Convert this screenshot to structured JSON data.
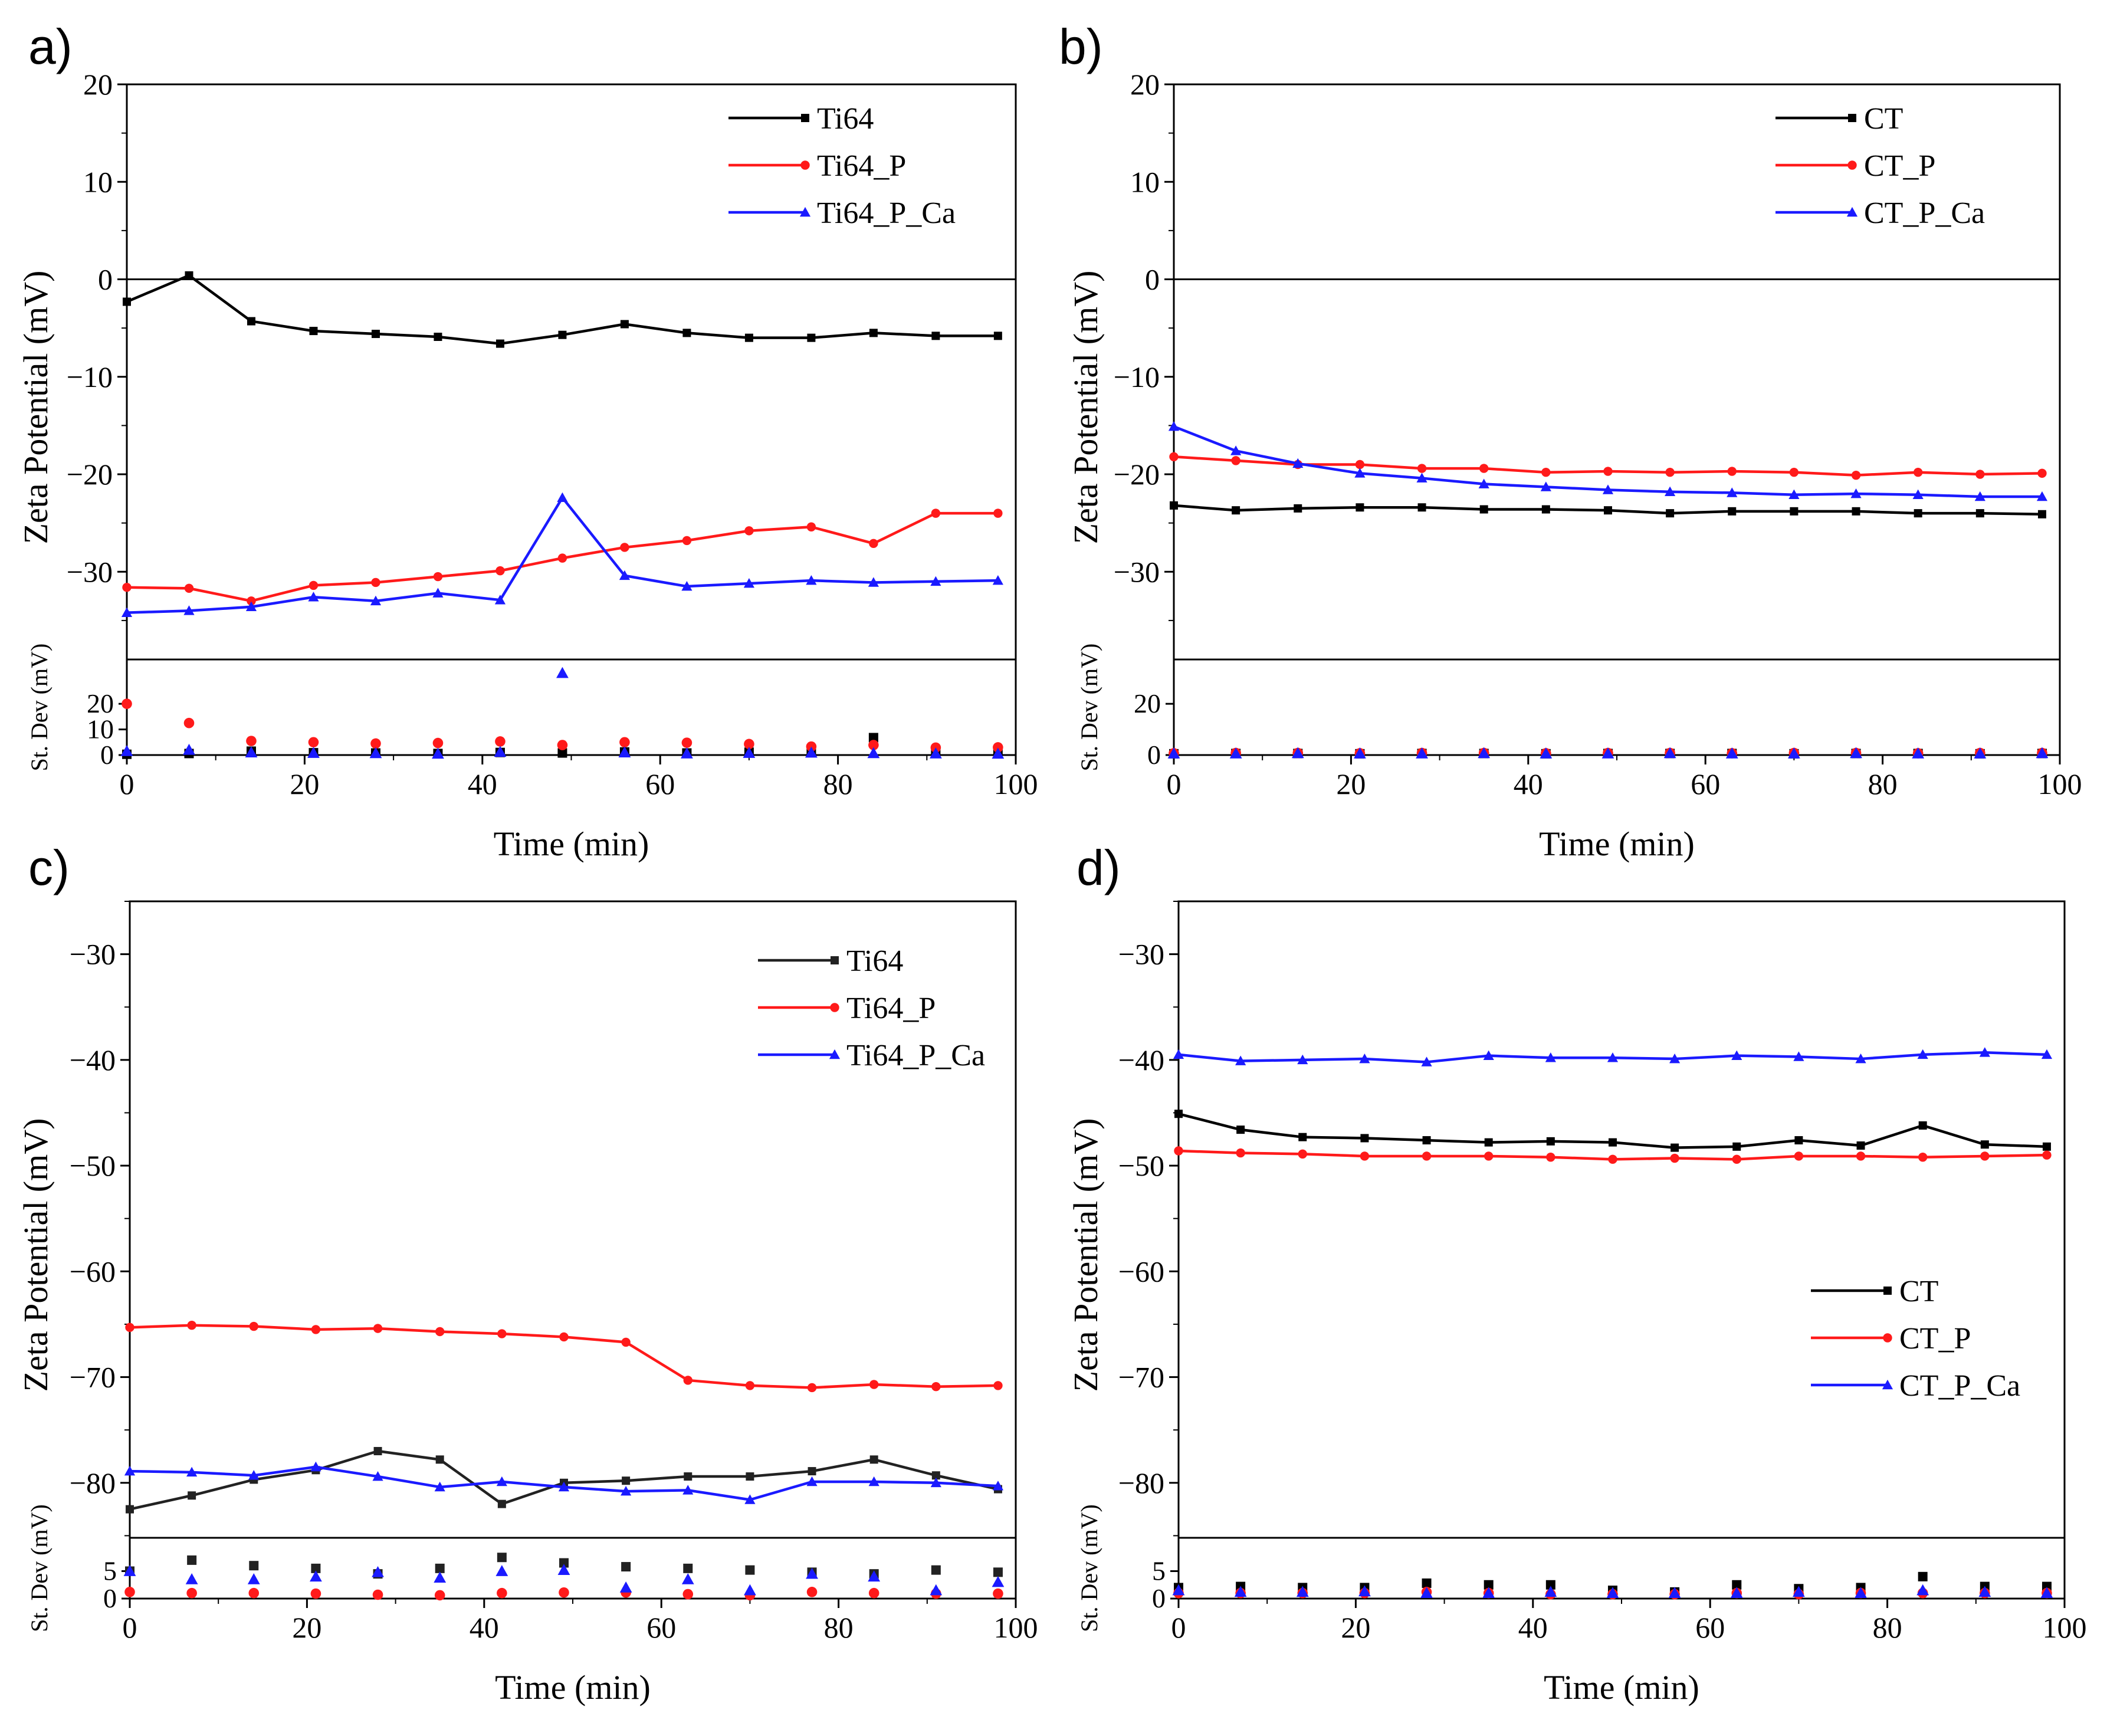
{
  "figure": {
    "colors": {
      "black": "#000000",
      "red": "#ff1a1a",
      "blue": "#1a1aff",
      "dark": "#222222"
    }
  },
  "chart_data": [
    {
      "panel": "a)",
      "type": "line",
      "xlabel": "Time (min)",
      "ylabel": "Zeta Potential (mV)",
      "sd_label": "St. Dev (mV)",
      "xlim": [
        0,
        100
      ],
      "ylim": [
        -39,
        20
      ],
      "yticks": [
        20,
        10,
        0,
        -10,
        -20,
        -30
      ],
      "sd_ylim": [
        0,
        35
      ],
      "sd_yticks": [
        20,
        10,
        0
      ],
      "xticks": [
        0,
        20,
        40,
        60,
        80,
        100
      ],
      "zero_line": true,
      "legend_pos": "top-right",
      "x": [
        0,
        7,
        14,
        21,
        28,
        35,
        42,
        49,
        56,
        63,
        70,
        77,
        84,
        91,
        98
      ],
      "series": [
        {
          "name": "Ti64",
          "color": "#000000",
          "marker": "square",
          "values": [
            -2.3,
            0.4,
            -4.3,
            -5.3,
            -5.6,
            -5.9,
            -6.6,
            -5.7,
            -4.6,
            -5.5,
            -6.0,
            -6.0,
            -5.5,
            -5.8,
            -5.8
          ],
          "sd": [
            0.3,
            0.6,
            1.5,
            0.9,
            0.8,
            0.6,
            1.0,
            0.8,
            1.2,
            0.8,
            1.1,
            1.0,
            6.8,
            0.9,
            0.8
          ]
        },
        {
          "name": "Ti64_P",
          "color": "#ff1a1a",
          "marker": "circle",
          "values": [
            -31.6,
            -31.7,
            -33.0,
            -31.4,
            -31.1,
            -30.5,
            -29.9,
            -28.6,
            -27.5,
            -26.8,
            -25.8,
            -25.4,
            -27.1,
            -24.0,
            -24.0
          ],
          "sd": [
            20.0,
            12.5,
            5.5,
            5.0,
            4.5,
            4.7,
            5.3,
            3.9,
            5.0,
            4.8,
            4.3,
            3.3,
            3.9,
            2.9,
            3.0
          ]
        },
        {
          "name": "Ti64_P_Ca",
          "color": "#1a1aff",
          "marker": "triangle",
          "values": [
            -34.2,
            -34.0,
            -33.6,
            -32.6,
            -33.0,
            -32.2,
            -32.9,
            -22.4,
            -30.4,
            -31.5,
            -31.2,
            -30.9,
            -31.1,
            -31.0,
            -30.9
          ],
          "sd": [
            1.5,
            2.0,
            1.0,
            0.8,
            0.7,
            0.5,
            1.2,
            32.0,
            1.0,
            0.6,
            0.8,
            0.9,
            0.7,
            0.6,
            0.5
          ]
        }
      ]
    },
    {
      "panel": "b)",
      "type": "line",
      "xlabel": "Time (min)",
      "ylabel": "Zeta Potential (mV)",
      "sd_label": "St. Dev (mV)",
      "xlim": [
        0,
        100
      ],
      "ylim": [
        -39,
        20
      ],
      "yticks": [
        20,
        10,
        0,
        -10,
        -20,
        -30
      ],
      "sd_ylim": [
        0,
        35
      ],
      "sd_yticks": [
        20,
        0
      ],
      "xticks": [
        0,
        20,
        40,
        60,
        80,
        100
      ],
      "zero_line": true,
      "legend_pos": "top-right",
      "x": [
        0,
        7,
        14,
        21,
        28,
        35,
        42,
        49,
        56,
        63,
        70,
        77,
        84,
        91,
        98
      ],
      "series": [
        {
          "name": "CT",
          "color": "#000000",
          "marker": "square",
          "values": [
            -23.2,
            -23.7,
            -23.5,
            -23.4,
            -23.4,
            -23.6,
            -23.6,
            -23.7,
            -24.0,
            -23.8,
            -23.8,
            -23.8,
            -24.0,
            -24.0,
            -24.1
          ],
          "sd": [
            0.5,
            0.6,
            0.6,
            0.5,
            0.6,
            0.6,
            0.5,
            0.6,
            0.6,
            0.6,
            0.5,
            0.6,
            0.6,
            0.5,
            0.6
          ]
        },
        {
          "name": "CT_P",
          "color": "#ff1a1a",
          "marker": "circle",
          "values": [
            -18.2,
            -18.6,
            -19.0,
            -19.0,
            -19.4,
            -19.4,
            -19.8,
            -19.7,
            -19.8,
            -19.7,
            -19.8,
            -20.1,
            -19.8,
            -20.0,
            -19.9
          ],
          "sd": [
            0.7,
            0.8,
            0.8,
            0.7,
            0.8,
            0.8,
            0.7,
            0.8,
            0.8,
            0.7,
            0.8,
            0.8,
            0.7,
            0.8,
            0.8
          ]
        },
        {
          "name": "CT_P_Ca",
          "color": "#1a1aff",
          "marker": "triangle",
          "values": [
            -15.1,
            -17.6,
            -18.9,
            -19.9,
            -20.4,
            -21.0,
            -21.3,
            -21.6,
            -21.8,
            -21.9,
            -22.1,
            -22.0,
            -22.1,
            -22.3,
            -22.3
          ],
          "sd": [
            0.6,
            0.6,
            0.7,
            0.6,
            0.6,
            0.7,
            0.6,
            0.6,
            0.7,
            0.6,
            0.6,
            0.7,
            0.6,
            0.6,
            0.7
          ]
        }
      ]
    },
    {
      "panel": "c)",
      "type": "line",
      "xlabel": "Time (min)",
      "ylabel": "Zeta Potential (mV)",
      "sd_label": "St. Dev (mV)",
      "xlim": [
        0,
        100
      ],
      "ylim": [
        -85.2,
        -25
      ],
      "yticks": [
        -30,
        -40,
        -50,
        -60,
        -70,
        -80
      ],
      "sd_ylim": [
        0,
        10
      ],
      "sd_yticks": [
        5,
        0
      ],
      "xticks": [
        0,
        20,
        40,
        60,
        80,
        100
      ],
      "zero_line": false,
      "legend_pos": "top-right",
      "x": [
        0,
        7,
        14,
        21,
        28,
        35,
        42,
        49,
        56,
        63,
        70,
        77,
        84,
        91,
        98
      ],
      "series": [
        {
          "name": "Ti64",
          "color": "#222222",
          "marker": "square",
          "values": [
            -82.5,
            -81.2,
            -79.7,
            -78.8,
            -77.0,
            -77.8,
            -82.0,
            -80.0,
            -79.8,
            -79.4,
            -79.4,
            -78.9,
            -77.8,
            -79.3,
            -80.6
          ],
          "sd": [
            5.0,
            7.0,
            6.0,
            5.5,
            4.5,
            5.5,
            7.5,
            6.5,
            5.8,
            5.5,
            5.2,
            4.8,
            4.5,
            5.2,
            4.8
          ]
        },
        {
          "name": "Ti64_P",
          "color": "#ff1a1a",
          "marker": "circle",
          "values": [
            -65.3,
            -65.1,
            -65.2,
            -65.5,
            -65.4,
            -65.7,
            -65.9,
            -66.2,
            -66.7,
            -70.3,
            -70.8,
            -71.0,
            -70.7,
            -70.9,
            -70.8
          ],
          "sd": [
            1.2,
            1.0,
            1.0,
            0.9,
            0.7,
            0.6,
            1.0,
            1.1,
            1.1,
            0.8,
            0.6,
            1.2,
            1.0,
            0.9,
            0.9
          ]
        },
        {
          "name": "Ti64_P_Ca",
          "color": "#1a1aff",
          "marker": "triangle",
          "values": [
            -78.9,
            -79.0,
            -79.3,
            -78.5,
            -79.4,
            -80.4,
            -79.9,
            -80.4,
            -80.8,
            -80.7,
            -81.6,
            -79.9,
            -79.9,
            -80.0,
            -80.3
          ],
          "sd": [
            5.0,
            3.5,
            3.5,
            4.0,
            4.8,
            3.8,
            5.0,
            5.2,
            2.0,
            3.5,
            1.5,
            4.5,
            4.0,
            1.5,
            3.0
          ]
        }
      ]
    },
    {
      "panel": "d)",
      "type": "line",
      "xlabel": "Time (min)",
      "ylabel": "Zeta Potential (mV)",
      "sd_label": "St. Dev (mV)",
      "xlim": [
        0,
        100
      ],
      "ylim": [
        -85.2,
        -25
      ],
      "yticks": [
        -30,
        -40,
        -50,
        -60,
        -70,
        -80
      ],
      "sd_ylim": [
        0,
        10
      ],
      "sd_yticks": [
        5,
        0
      ],
      "xticks": [
        0,
        20,
        40,
        60,
        80,
        100
      ],
      "zero_line": false,
      "legend_pos": "bottom-right",
      "x": [
        0,
        7,
        14,
        21,
        28,
        35,
        42,
        49,
        56,
        63,
        70,
        77,
        84,
        91,
        98
      ],
      "series": [
        {
          "name": "CT",
          "color": "#000000",
          "marker": "square",
          "values": [
            -45.1,
            -46.6,
            -47.3,
            -47.4,
            -47.6,
            -47.8,
            -47.7,
            -47.8,
            -48.3,
            -48.2,
            -47.6,
            -48.1,
            -46.2,
            -48.0,
            -48.2
          ],
          "sd": [
            2.0,
            2.2,
            2.0,
            2.0,
            2.8,
            2.5,
            2.5,
            1.5,
            1.2,
            2.5,
            1.8,
            2.0,
            4.0,
            2.2,
            2.2
          ]
        },
        {
          "name": "CT_P",
          "color": "#ff1a1a",
          "marker": "circle",
          "values": [
            -48.6,
            -48.8,
            -48.9,
            -49.1,
            -49.1,
            -49.1,
            -49.2,
            -49.4,
            -49.3,
            -49.4,
            -49.1,
            -49.1,
            -49.2,
            -49.1,
            -49.0
          ],
          "sd": [
            1.0,
            1.0,
            1.0,
            1.0,
            1.2,
            1.0,
            0.8,
            0.8,
            0.8,
            1.0,
            0.8,
            1.0,
            1.0,
            1.0,
            1.0
          ]
        },
        {
          "name": "CT_P_Ca",
          "color": "#1a1aff",
          "marker": "triangle",
          "values": [
            -39.5,
            -40.1,
            -40.0,
            -39.9,
            -40.2,
            -39.6,
            -39.8,
            -39.8,
            -39.9,
            -39.6,
            -39.7,
            -39.9,
            -39.5,
            -39.3,
            -39.5
          ],
          "sd": [
            1.5,
            1.2,
            1.2,
            1.3,
            1.0,
            1.0,
            1.2,
            1.0,
            1.0,
            1.0,
            1.2,
            1.0,
            1.5,
            1.2,
            1.0
          ]
        }
      ]
    }
  ]
}
